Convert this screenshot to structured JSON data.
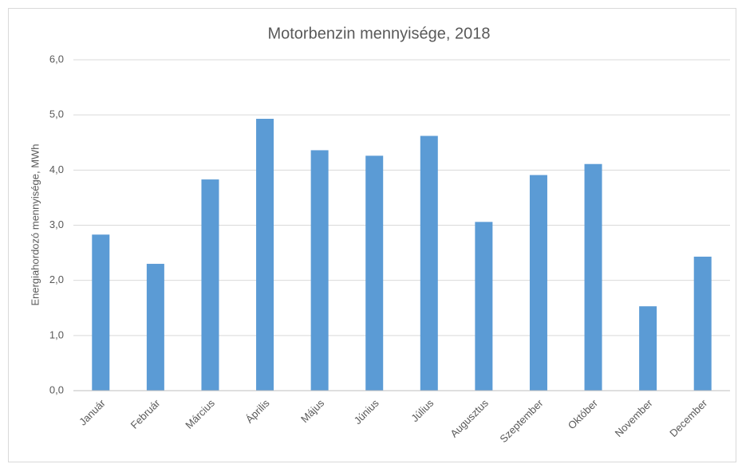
{
  "chart_data": {
    "type": "bar",
    "title": "Motorbenzin mennyisége, 2018",
    "y_axis_label": "Energiahordozó mennyisége, MWh",
    "categories": [
      "Január",
      "Február",
      "Március",
      "Április",
      "Május",
      "Június",
      "Július",
      "Augusztus",
      "Szeptember",
      "Október",
      "November",
      "December"
    ],
    "values": [
      2.83,
      2.3,
      3.83,
      4.93,
      4.36,
      4.26,
      4.62,
      3.06,
      3.91,
      4.11,
      1.53,
      2.43
    ],
    "color": "#5b9bd5",
    "ylim": [
      0,
      6
    ],
    "yticks": [
      {
        "value": 0,
        "label": "0,0"
      },
      {
        "value": 1,
        "label": "1,0"
      },
      {
        "value": 2,
        "label": "2,0"
      },
      {
        "value": 3,
        "label": "3,0"
      },
      {
        "value": 4,
        "label": "4,0"
      },
      {
        "value": 5,
        "label": "5,0"
      },
      {
        "value": 6,
        "label": "6,0"
      }
    ],
    "grid": true
  }
}
